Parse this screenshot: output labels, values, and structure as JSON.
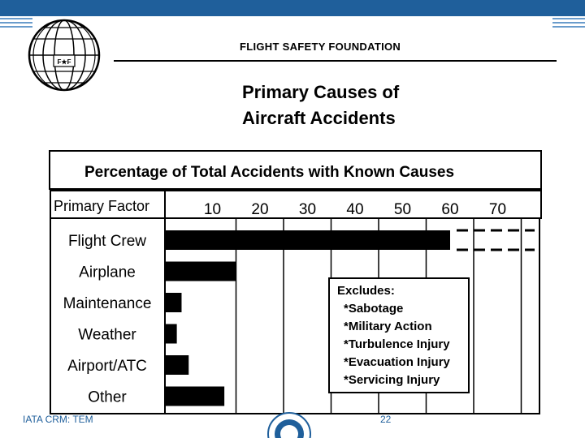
{
  "header": {
    "org_name": "FLIGHT SAFETY FOUNDATION",
    "logo_text": "F★F",
    "title_line1": "Primary Causes of",
    "title_line2": "Aircraft Accidents"
  },
  "footer": {
    "left_text": "IATA CRM: TEM",
    "page_number": "22"
  },
  "colors": {
    "bar": "#000000",
    "banner": "#1f5f9b"
  },
  "chart_data": {
    "type": "bar",
    "orientation": "horizontal",
    "title": "Percentage of Total Accidents with Known Causes",
    "category_header": "Primary Factor",
    "categories": [
      "Flight Crew",
      "Airplane",
      "Maintenance",
      "Weather",
      "Airport/ATC",
      "Other"
    ],
    "values": [
      60,
      15,
      3.5,
      2.5,
      5,
      12.5
    ],
    "xticks": [
      "10",
      "20",
      "30",
      "40",
      "50",
      "60",
      "70"
    ],
    "xlim": [
      0,
      80
    ],
    "grid": true,
    "note_title": "Excludes:",
    "note_items": [
      "*Sabotage",
      "*Military Action",
      "*Turbulence Injury",
      "*Evacuation Injury",
      "*Servicing Injury"
    ]
  }
}
